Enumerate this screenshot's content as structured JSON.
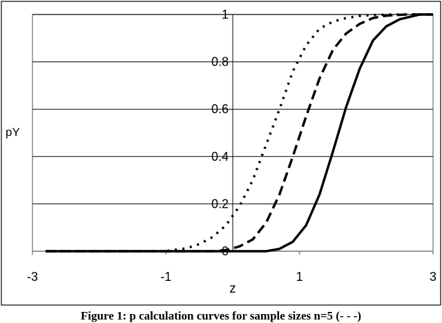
{
  "caption": "Figure 1: p  calculation curves for sample sizes n=5 (- - -)",
  "chart_data": {
    "type": "line",
    "xlabel": "z",
    "ylabel": "pY",
    "xlim": [
      -3,
      3
    ],
    "ylim": [
      0,
      1
    ],
    "x_ticks": [
      "-3",
      "-1",
      "1",
      "3"
    ],
    "y_ticks": [
      "0",
      "0.2",
      "0.4",
      "0.6",
      "0.8",
      "1"
    ],
    "grid": "horizontal",
    "series": [
      {
        "style": "dotted",
        "x": [
          -2.8,
          -1.0,
          -0.9,
          -0.7,
          -0.5,
          -0.3,
          -0.1,
          0.1,
          0.3,
          0.5,
          0.7,
          0.9,
          1.1,
          1.3,
          1.5,
          1.7,
          1.9,
          2.1,
          2.4,
          3.0
        ],
        "y": [
          0.0,
          0.0,
          0.005,
          0.012,
          0.03,
          0.06,
          0.11,
          0.19,
          0.3,
          0.45,
          0.6,
          0.76,
          0.87,
          0.94,
          0.97,
          0.985,
          0.994,
          0.998,
          1.0,
          1.0
        ]
      },
      {
        "style": "dashed",
        "x": [
          -2.8,
          -0.3,
          -0.1,
          0.1,
          0.3,
          0.5,
          0.7,
          0.9,
          1.1,
          1.3,
          1.5,
          1.7,
          1.9,
          2.1,
          2.3,
          2.6,
          3.0
        ],
        "y": [
          0.0,
          0.0,
          0.005,
          0.02,
          0.05,
          0.12,
          0.24,
          0.4,
          0.57,
          0.73,
          0.85,
          0.92,
          0.96,
          0.985,
          0.995,
          1.0,
          1.0
        ]
      },
      {
        "style": "solid",
        "x": [
          -2.8,
          0.5,
          0.7,
          0.9,
          1.1,
          1.3,
          1.5,
          1.7,
          1.9,
          2.1,
          2.3,
          2.5,
          2.8,
          3.0
        ],
        "y": [
          0.0,
          0.0,
          0.01,
          0.04,
          0.11,
          0.24,
          0.42,
          0.61,
          0.77,
          0.89,
          0.95,
          0.98,
          1.0,
          1.0
        ]
      }
    ]
  }
}
